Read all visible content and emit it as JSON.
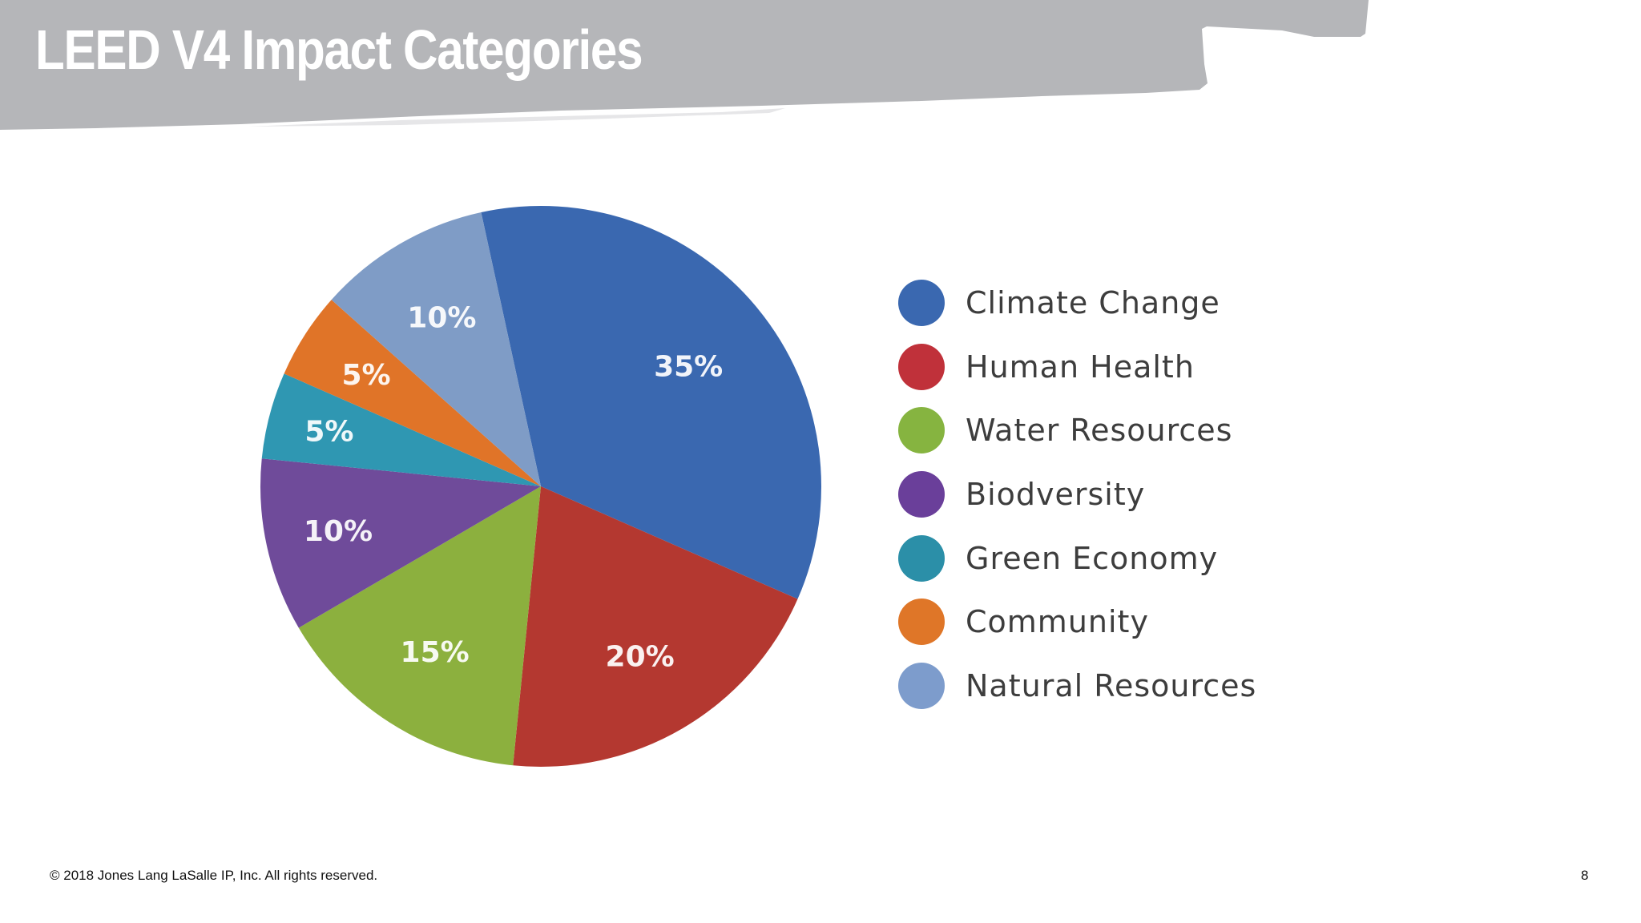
{
  "slide": {
    "title": "LEED V4 Impact Categories",
    "footer_copyright": "© 2018 Jones Lang LaSalle IP, Inc. All rights reserved.",
    "page_number": "8",
    "banner_color": "#b5b6b9"
  },
  "chart_data": {
    "type": "pie",
    "title": "LEED V4 Impact Categories",
    "start_angle_deg": -12.3,
    "direction": "clockwise",
    "categories": [
      "Climate Change",
      "Human Health",
      "Water Resources",
      "Biodversity",
      "Green Economy",
      "Community",
      "Natural Resources"
    ],
    "values": [
      35,
      20,
      15,
      10,
      5,
      5,
      10
    ],
    "value_labels": [
      "35%",
      "20%",
      "15%",
      "10%",
      "5%",
      "5%",
      "10%"
    ],
    "colors": [
      "#3a68b0",
      "#b43830",
      "#8cb03e",
      "#6f4b9a",
      "#2f97b2",
      "#e07428",
      "#7f9cc6"
    ],
    "legend_position": "right"
  },
  "legend": {
    "items": [
      {
        "label": "Climate Change",
        "color": "#3a68b0"
      },
      {
        "label": "Human Health",
        "color": "#c0313a"
      },
      {
        "label": "Water Resources",
        "color": "#86b440"
      },
      {
        "label": "Biodversity",
        "color": "#6a3f9a"
      },
      {
        "label": "Green Economy",
        "color": "#2b8fa8"
      },
      {
        "label": "Community",
        "color": "#df7628"
      },
      {
        "label": "Natural Resources",
        "color": "#7d9ccc"
      }
    ]
  }
}
